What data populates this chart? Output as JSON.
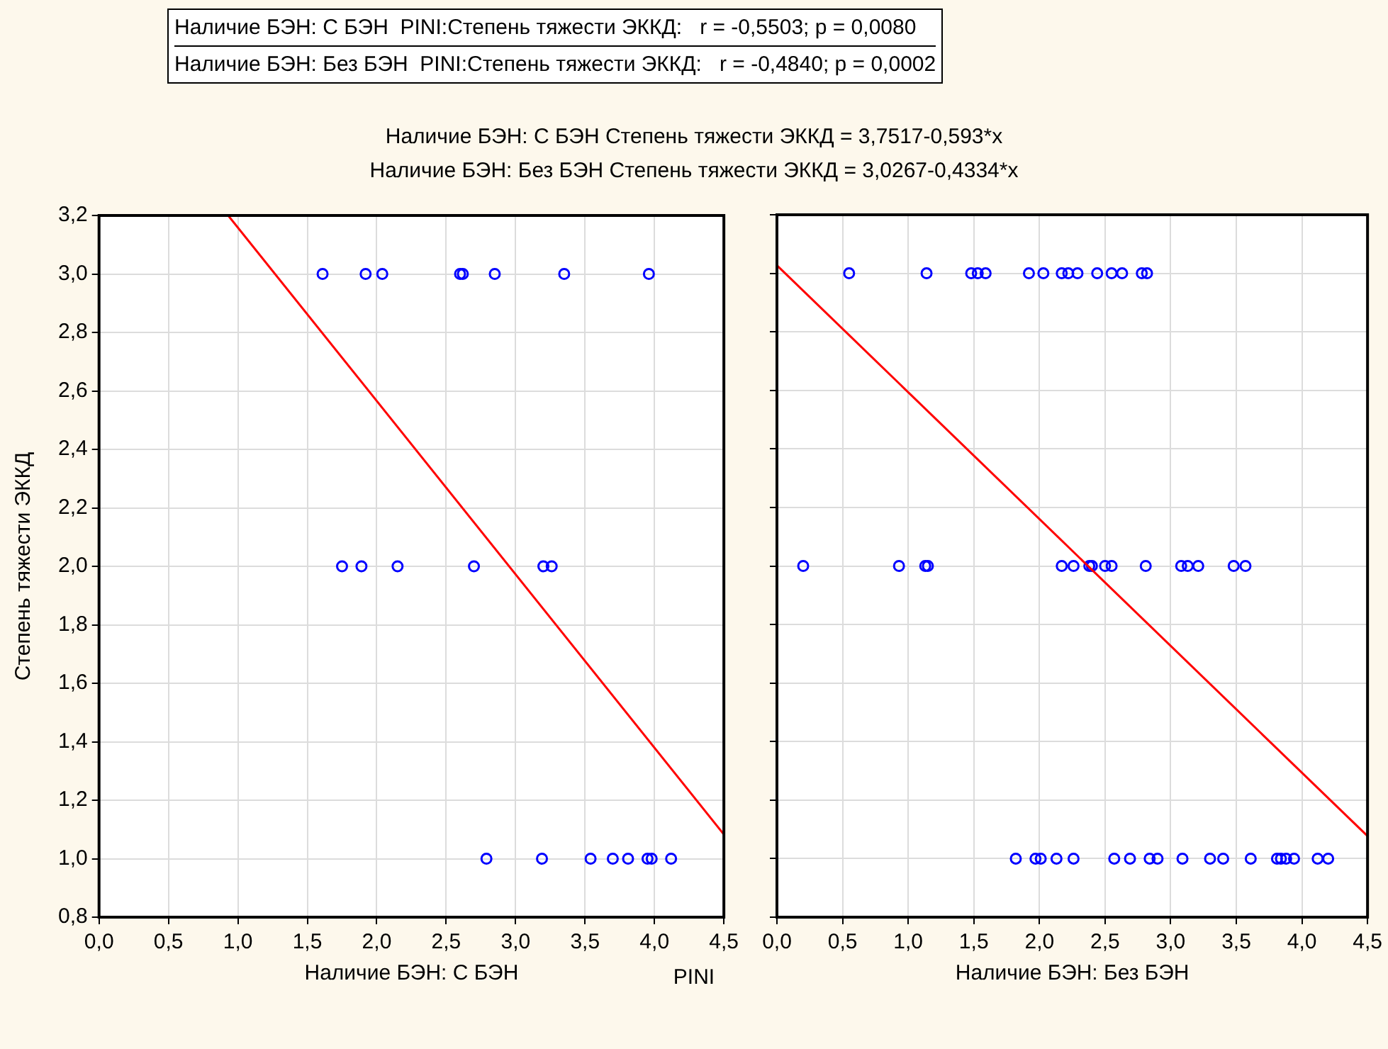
{
  "chart_data": [
    {
      "type": "scatter",
      "xlabel": "Наличие БЭН: С БЭН",
      "ylabel": "Степень тяжести ЭККД",
      "annotations": [
        "Наличие БЭН: С БЭН  PINI:Степень тяжести ЭККД:   r = -0,5503; p = 0,0080",
        "Наличие БЭН: Без БЭН  PINI:Степень тяжести ЭККД:   r = -0,4840; p = 0,0002",
        "Наличие БЭН: С БЭН Степень тяжести ЭККД = 3,7517-0,593*x",
        "Наличие БЭН: Без БЭН Степень тяжести ЭККД = 3,0267-0,4334*x"
      ],
      "xlim": [
        0,
        4.5
      ],
      "ylim": [
        0.8,
        3.2
      ],
      "xticks": [
        {
          "value": 0,
          "label": "0,0"
        },
        {
          "value": 0.5,
          "label": "0,5"
        },
        {
          "value": 1,
          "label": "1,0"
        },
        {
          "value": 1.5,
          "label": "1,5"
        },
        {
          "value": 2,
          "label": "2,0"
        },
        {
          "value": 2.5,
          "label": "2,5"
        },
        {
          "value": 3,
          "label": "3,0"
        },
        {
          "value": 3.5,
          "label": "3,5"
        },
        {
          "value": 4,
          "label": "4,0"
        },
        {
          "value": 4.5,
          "label": "4,5"
        }
      ],
      "yticks": [
        {
          "value": 0.8,
          "label": "0,8"
        },
        {
          "value": 1,
          "label": "1,0"
        },
        {
          "value": 1.2,
          "label": "1,2"
        },
        {
          "value": 1.4,
          "label": "1,4"
        },
        {
          "value": 1.6,
          "label": "1,6"
        },
        {
          "value": 1.8,
          "label": "1,8"
        },
        {
          "value": 2,
          "label": "2,0"
        },
        {
          "value": 2.2,
          "label": "2,2"
        },
        {
          "value": 2.4,
          "label": "2,4"
        },
        {
          "value": 2.6,
          "label": "2,6"
        },
        {
          "value": 2.8,
          "label": "2,8"
        },
        {
          "value": 3,
          "label": "3,0"
        },
        {
          "value": 3.2,
          "label": "3,2"
        }
      ],
      "grid": true,
      "legend": false,
      "series": [
        {
          "marker": "circle",
          "color": "#0000ff",
          "x": [
            1.61,
            1.92,
            2.04,
            2.6,
            2.62,
            2.85,
            3.35,
            3.96,
            1.75,
            1.89,
            2.15,
            2.7,
            3.2,
            3.26,
            2.79,
            3.19,
            3.54,
            3.7,
            3.81,
            3.95,
            3.98,
            4.12
          ],
          "values": [
            3,
            3,
            3,
            3,
            3,
            3,
            3,
            3,
            2,
            2,
            2,
            2,
            2,
            2,
            1,
            1,
            1,
            1,
            1,
            1,
            1,
            1
          ]
        },
        {
          "type": "line",
          "marker": "none",
          "color": "#ff0000",
          "x": [
            0.93,
            4.5
          ],
          "values": [
            3.2,
            1.083
          ]
        }
      ]
    },
    {
      "type": "scatter",
      "xlabel": "Наличие БЭН: Без БЭН",
      "annotations": [
        "PINI"
      ],
      "xlim": [
        0,
        4.5
      ],
      "ylim": [
        0.8,
        3.2
      ],
      "tick_labels": "x",
      "xticks": [
        {
          "value": 0,
          "label": "0,0"
        },
        {
          "value": 0.5,
          "label": "0,5"
        },
        {
          "value": 1,
          "label": "1,0"
        },
        {
          "value": 1.5,
          "label": "1,5"
        },
        {
          "value": 2,
          "label": "2,0"
        },
        {
          "value": 2.5,
          "label": "2,5"
        },
        {
          "value": 3,
          "label": "3,0"
        },
        {
          "value": 3.5,
          "label": "3,5"
        },
        {
          "value": 4,
          "label": "4,0"
        },
        {
          "value": 4.5,
          "label": "4,5"
        }
      ],
      "yticks": [
        {
          "value": 0.8,
          "label": null
        },
        {
          "value": 1,
          "label": null
        },
        {
          "value": 1.2,
          "label": null
        },
        {
          "value": 1.4,
          "label": null
        },
        {
          "value": 1.6,
          "label": null
        },
        {
          "value": 1.8,
          "label": null
        },
        {
          "value": 2,
          "label": null
        },
        {
          "value": 2.2,
          "label": null
        },
        {
          "value": 2.4,
          "label": null
        },
        {
          "value": 2.6,
          "label": null
        },
        {
          "value": 2.8,
          "label": null
        },
        {
          "value": 3,
          "label": null
        },
        {
          "value": 3.2,
          "label": null
        }
      ],
      "grid": true,
      "legend": false,
      "series": [
        {
          "marker": "circle",
          "color": "#0000ff",
          "x": [
            0.55,
            1.14,
            1.48,
            1.53,
            1.59,
            1.92,
            2.03,
            2.17,
            2.22,
            2.29,
            2.44,
            2.55,
            2.63,
            2.78,
            2.82,
            0.2,
            0.93,
            1.13,
            1.15,
            2.17,
            2.26,
            2.38,
            2.4,
            2.5,
            2.55,
            2.81,
            3.08,
            3.13,
            3.21,
            3.48,
            3.57,
            1.82,
            1.97,
            2.01,
            2.13,
            2.26,
            2.57,
            2.69,
            2.84,
            2.9,
            3.09,
            3.3,
            3.4,
            3.61,
            3.81,
            3.84,
            3.88,
            3.94,
            4.12,
            4.2
          ],
          "values": [
            3,
            3,
            3,
            3,
            3,
            3,
            3,
            3,
            3,
            3,
            3,
            3,
            3,
            3,
            3,
            2,
            2,
            2,
            2,
            2,
            2,
            2,
            2,
            2,
            2,
            2,
            2,
            2,
            2,
            2,
            2,
            1,
            1,
            1,
            1,
            1,
            1,
            1,
            1,
            1,
            1,
            1,
            1,
            1,
            1,
            1,
            1,
            1,
            1,
            1
          ]
        },
        {
          "type": "line",
          "marker": "none",
          "color": "#ff0000",
          "x": [
            0,
            4.5
          ],
          "values": [
            3.027,
            1.077
          ]
        }
      ]
    }
  ]
}
